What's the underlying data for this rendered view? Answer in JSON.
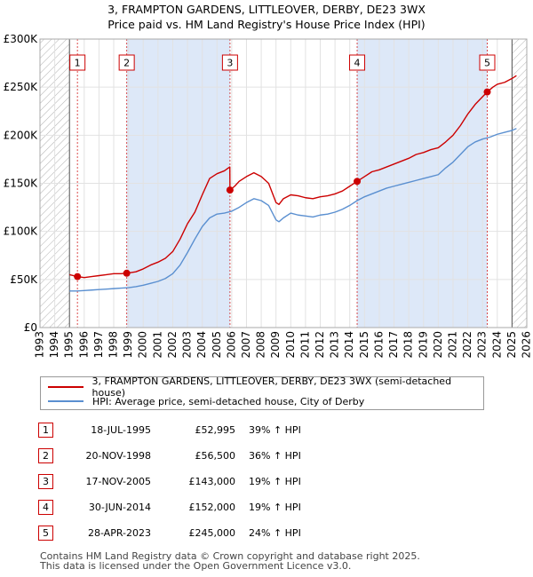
{
  "title_line1": "3, FRAMPTON GARDENS, LITTLEOVER, DERBY, DE23 3WX",
  "title_line2": "Price paid vs. HM Land Registry's House Price Index (HPI)",
  "colors": {
    "price": "#cc0000",
    "hpi": "#5a8fd0",
    "band": "#dde8f8",
    "hatch": "#b0b0b0"
  },
  "chart_data": {
    "type": "line",
    "x_range": [
      1993,
      2026
    ],
    "ylim": [
      0,
      300000
    ],
    "y_ticks": [
      0,
      50000,
      100000,
      150000,
      200000,
      250000,
      300000
    ],
    "y_tick_labels": [
      "£0",
      "£50K",
      "£100K",
      "£150K",
      "£200K",
      "£250K",
      "£300K"
    ],
    "x_ticks": [
      1993,
      1994,
      1995,
      1996,
      1997,
      1998,
      1999,
      2000,
      2001,
      2002,
      2003,
      2004,
      2005,
      2006,
      2007,
      2008,
      2009,
      2010,
      2011,
      2012,
      2013,
      2014,
      2015,
      2016,
      2017,
      2018,
      2019,
      2020,
      2021,
      2022,
      2023,
      2024,
      2025,
      2026
    ],
    "hatched_before": 1995.0,
    "hatched_after": 2025.0,
    "bands": [
      [
        1998.88,
        2005.88
      ],
      [
        2014.5,
        2023.32
      ]
    ],
    "sale_markers": [
      {
        "label": "1",
        "x": 1995.54,
        "y": 52995
      },
      {
        "label": "2",
        "x": 1998.88,
        "y": 56500
      },
      {
        "label": "3",
        "x": 2005.88,
        "y": 143000
      },
      {
        "label": "4",
        "x": 2014.5,
        "y": 152000
      },
      {
        "label": "5",
        "x": 2023.32,
        "y": 245000
      }
    ],
    "series": [
      {
        "name": "3, FRAMPTON GARDENS, LITTLEOVER, DERBY, DE23 3WX (semi-detached house)",
        "x": [
          1995.0,
          1995.54,
          1996.0,
          1996.5,
          1997.0,
          1997.5,
          1998.0,
          1998.5,
          1998.88,
          1999.5,
          2000.0,
          2000.5,
          2001.0,
          2001.5,
          2002.0,
          2002.5,
          2003.0,
          2003.5,
          2004.0,
          2004.5,
          2005.0,
          2005.5,
          2005.87,
          2005.88,
          2006.2,
          2006.5,
          2007.0,
          2007.5,
          2008.0,
          2008.5,
          2009.0,
          2009.2,
          2009.5,
          2010.0,
          2010.5,
          2011.0,
          2011.5,
          2012.0,
          2012.5,
          2013.0,
          2013.5,
          2014.0,
          2014.5,
          2015.0,
          2015.5,
          2016.0,
          2016.5,
          2017.0,
          2017.5,
          2018.0,
          2018.5,
          2019.0,
          2019.5,
          2020.0,
          2020.5,
          2021.0,
          2021.5,
          2022.0,
          2022.5,
          2023.0,
          2023.32,
          2023.7,
          2024.0,
          2024.5,
          2025.0,
          2025.3
        ],
        "y": [
          55000,
          52995,
          52000,
          53000,
          54000,
          55000,
          56000,
          56000,
          56500,
          58000,
          61000,
          65000,
          68000,
          72000,
          79000,
          92000,
          108000,
          120000,
          138000,
          155000,
          160000,
          163000,
          167000,
          143000,
          147000,
          152000,
          157000,
          161000,
          157000,
          150000,
          130000,
          128000,
          134000,
          138000,
          137000,
          135000,
          134000,
          136000,
          137000,
          139000,
          142000,
          147000,
          152000,
          157000,
          162000,
          164000,
          167000,
          170000,
          173000,
          176000,
          180000,
          182000,
          185000,
          187000,
          193000,
          200000,
          210000,
          222000,
          232000,
          240000,
          245000,
          250000,
          253000,
          255000,
          259000,
          262000
        ]
      },
      {
        "name": "HPI: Average price, semi-detached house, City of Derby",
        "x": [
          1995.0,
          1995.5,
          1996.0,
          1996.5,
          1997.0,
          1997.5,
          1998.0,
          1998.5,
          1999.0,
          1999.5,
          2000.0,
          2000.5,
          2001.0,
          2001.5,
          2002.0,
          2002.5,
          2003.0,
          2003.5,
          2004.0,
          2004.5,
          2005.0,
          2005.5,
          2006.0,
          2006.5,
          2007.0,
          2007.5,
          2008.0,
          2008.5,
          2009.0,
          2009.2,
          2009.5,
          2010.0,
          2010.5,
          2011.0,
          2011.5,
          2012.0,
          2012.5,
          2013.0,
          2013.5,
          2014.0,
          2014.5,
          2015.0,
          2015.5,
          2016.0,
          2016.5,
          2017.0,
          2017.5,
          2018.0,
          2018.5,
          2019.0,
          2019.5,
          2020.0,
          2020.5,
          2021.0,
          2021.5,
          2022.0,
          2022.5,
          2023.0,
          2023.5,
          2024.0,
          2024.5,
          2025.0,
          2025.3
        ],
        "y": [
          38000,
          38000,
          38500,
          39000,
          39500,
          40000,
          40500,
          41000,
          41500,
          42500,
          44000,
          46000,
          48000,
          51000,
          56000,
          65000,
          78000,
          92000,
          105000,
          114000,
          118000,
          119000,
          121000,
          125000,
          130000,
          134000,
          132000,
          127000,
          112000,
          110000,
          114000,
          119000,
          117000,
          116000,
          115000,
          117000,
          118000,
          120000,
          123000,
          127000,
          132000,
          136000,
          139000,
          142000,
          145000,
          147000,
          149000,
          151000,
          153000,
          155000,
          157000,
          159000,
          166000,
          172000,
          180000,
          188000,
          193000,
          196000,
          198000,
          201000,
          203000,
          205000,
          207000
        ]
      }
    ]
  },
  "legend": {
    "price_label": "3, FRAMPTON GARDENS, LITTLEOVER, DERBY, DE23 3WX (semi-detached house)",
    "hpi_label": "HPI: Average price, semi-detached house, City of Derby"
  },
  "sales": [
    {
      "num": "1",
      "date": "18-JUL-1995",
      "price": "£52,995",
      "hpi": "39% ↑ HPI"
    },
    {
      "num": "2",
      "date": "20-NOV-1998",
      "price": "£56,500",
      "hpi": "36% ↑ HPI"
    },
    {
      "num": "3",
      "date": "17-NOV-2005",
      "price": "£143,000",
      "hpi": "19% ↑ HPI"
    },
    {
      "num": "4",
      "date": "30-JUN-2014",
      "price": "£152,000",
      "hpi": "19% ↑ HPI"
    },
    {
      "num": "5",
      "date": "28-APR-2023",
      "price": "£245,000",
      "hpi": "24% ↑ HPI"
    }
  ],
  "footer_line1": "Contains HM Land Registry data © Crown copyright and database right 2025.",
  "footer_line2": "This data is licensed under the Open Government Licence v3.0."
}
